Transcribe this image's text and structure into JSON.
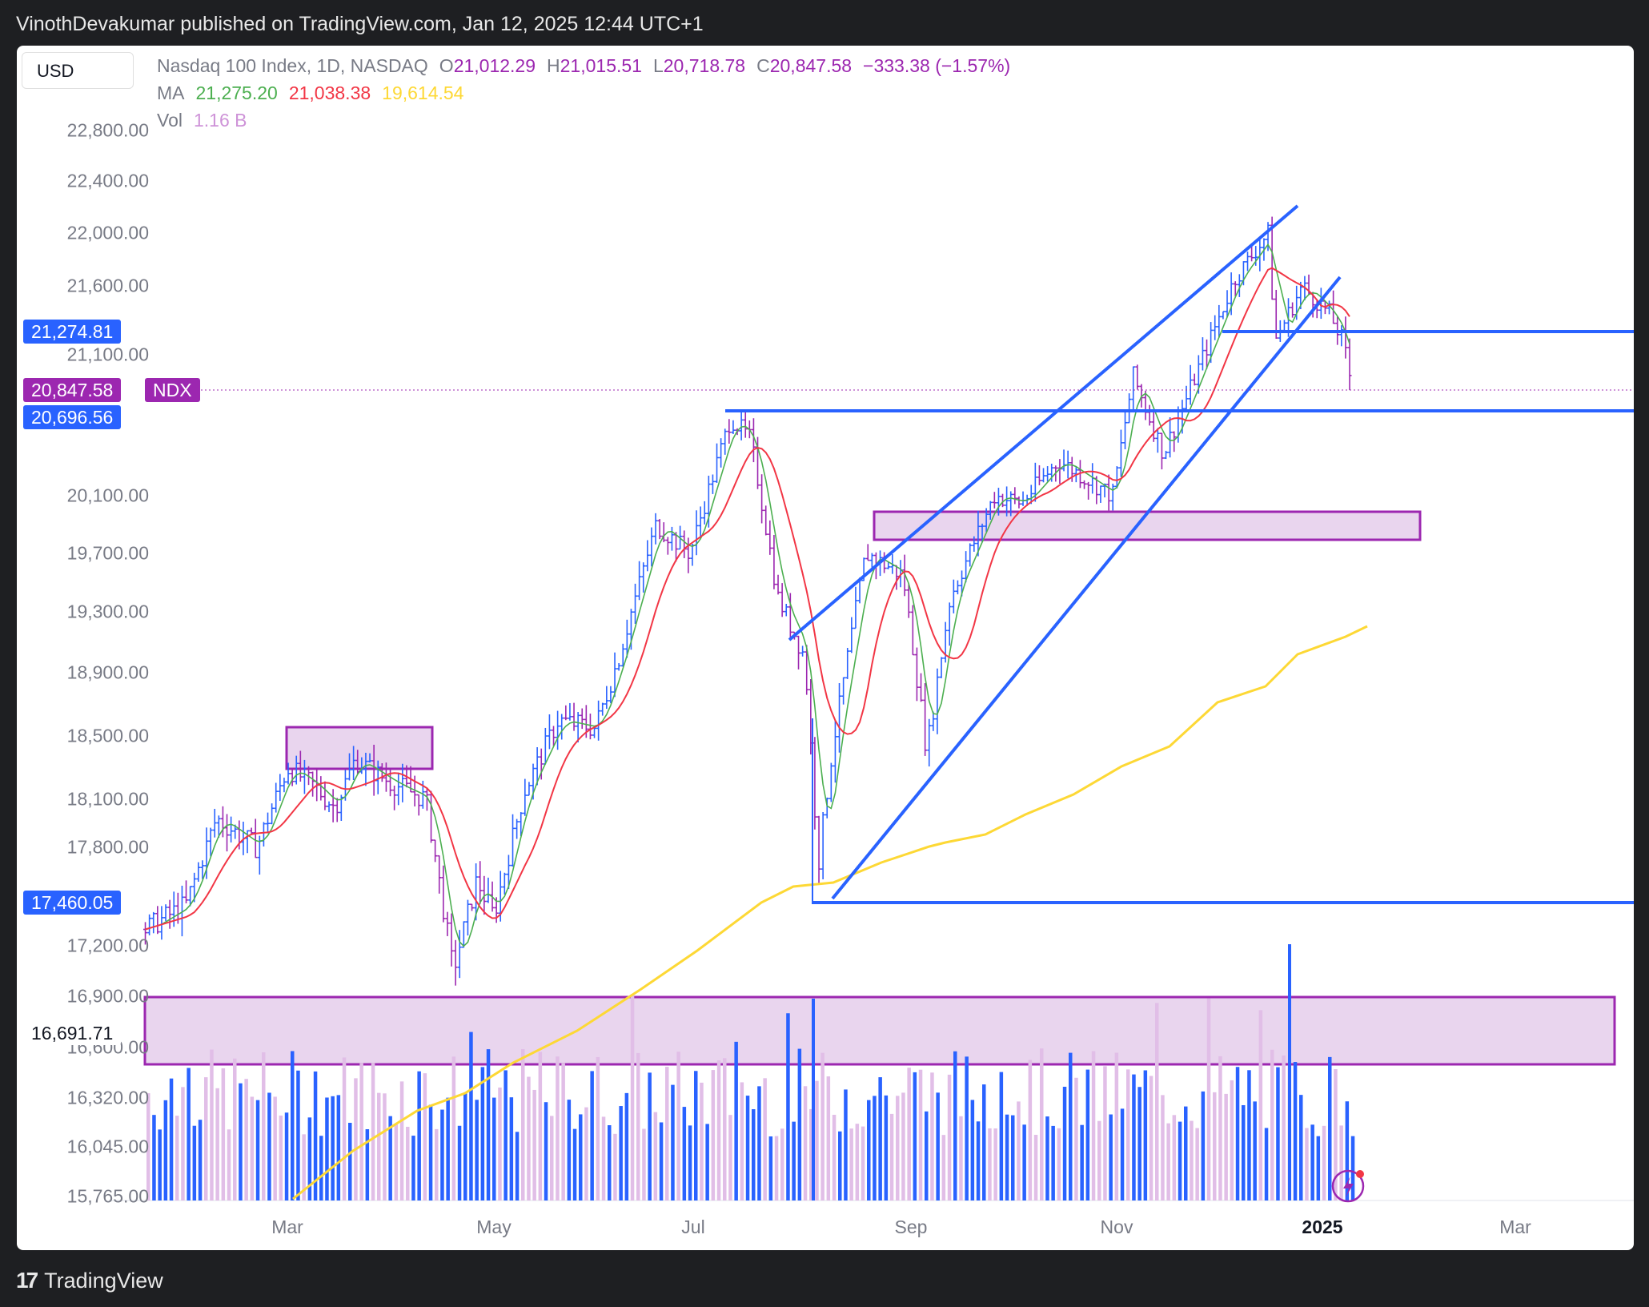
{
  "header": {
    "published": "VinothDevakumar published on TradingView.com, Jan 12, 2025 12:44 UTC+1"
  },
  "footer": {
    "brand": "TradingView",
    "logo_glyph": "17"
  },
  "toolbar": {
    "currency": "USD"
  },
  "legend": {
    "title": "Nasdaq 100 Index, 1D, NASDAQ",
    "o_label": "O",
    "o_value": "21,012.29",
    "h_label": "H",
    "h_value": "21,015.51",
    "l_label": "L",
    "l_value": "20,718.78",
    "c_label": "C",
    "c_value": "20,847.58",
    "change": "−333.38 (−1.57%)",
    "ma_label": "MA",
    "ma1": "21,275.20",
    "ma2": "21,038.38",
    "ma3": "19,614.54",
    "vol_label": "Vol",
    "vol_value": "1.16 B"
  },
  "price_tags": {
    "level_upper": "21,274.81",
    "last": "20,847.58",
    "symbol": "NDX",
    "level_mid": "20,696.56",
    "level_low": "17,460.05",
    "level_zone": "16,691.71"
  },
  "colors": {
    "blue": "#2962ff",
    "purple": "#9c27b0",
    "zone_fill": "#e9d5ee",
    "ma_green": "#4caf50",
    "ma_red": "#f23645",
    "ma_yellow": "#fdd835",
    "up": "#2962ff",
    "down": "#9c27b0"
  },
  "chart_data": {
    "type": "candlestick",
    "y_axis_ticks": [
      22800,
      22400,
      22000,
      21600,
      21100,
      20100,
      19700,
      19300,
      18900,
      18500,
      18100,
      17800,
      17200,
      16900,
      16600,
      16320,
      16045,
      15765
    ],
    "y_axis_tick_labels": [
      "22,800.00",
      "22,400.00",
      "22,000.00",
      "21,600.00",
      "21,100.00",
      "20,100.00",
      "19,700.00",
      "19,300.00",
      "18,900.00",
      "18,500.00",
      "18,100.00",
      "17,800.00",
      "17,200.00",
      "16,900.00",
      "16,600.00",
      "16,320.00",
      "16,045.00",
      "15,765.00"
    ],
    "x_axis_labels": [
      "Mar",
      "May",
      "Jul",
      "Sep",
      "Nov",
      "2025",
      "Mar"
    ],
    "price_path": [
      [
        "2024-01-19",
        17300
      ],
      [
        "2024-01-31",
        17450
      ],
      [
        "2024-02-09",
        17980
      ],
      [
        "2024-02-21",
        17800
      ],
      [
        "2024-03-01",
        18300
      ],
      [
        "2024-03-08",
        18200
      ],
      [
        "2024-03-15",
        18050
      ],
      [
        "2024-03-21",
        18350
      ],
      [
        "2024-04-01",
        18200
      ],
      [
        "2024-04-11",
        18100
      ],
      [
        "2024-04-19",
        17050
      ],
      [
        "2024-04-26",
        17600
      ],
      [
        "2024-05-01",
        17380
      ],
      [
        "2024-05-10",
        18150
      ],
      [
        "2024-05-20",
        18600
      ],
      [
        "2024-05-31",
        18550
      ],
      [
        "2024-06-07",
        19000
      ],
      [
        "2024-06-18",
        19900
      ],
      [
        "2024-06-28",
        19700
      ],
      [
        "2024-07-10",
        20650
      ],
      [
        "2024-07-16",
        20500
      ],
      [
        "2024-07-24",
        19400
      ],
      [
        "2024-08-01",
        19000
      ],
      [
        "2024-08-05",
        17700
      ],
      [
        "2024-08-09",
        18400
      ],
      [
        "2024-08-19",
        19700
      ],
      [
        "2024-08-30",
        19550
      ],
      [
        "2024-09-06",
        18400
      ],
      [
        "2024-09-13",
        19400
      ],
      [
        "2024-09-26",
        20100
      ],
      [
        "2024-10-04",
        20050
      ],
      [
        "2024-10-15",
        20350
      ],
      [
        "2024-10-31",
        20100
      ],
      [
        "2024-11-06",
        20950
      ],
      [
        "2024-11-15",
        20400
      ],
      [
        "2024-11-22",
        20800
      ],
      [
        "2024-12-06",
        21650
      ],
      [
        "2024-12-16",
        22000
      ],
      [
        "2024-12-18",
        21200
      ],
      [
        "2024-12-26",
        21600
      ],
      [
        "2025-01-03",
        21400
      ],
      [
        "2025-01-07",
        21200
      ],
      [
        "2025-01-10",
        20848
      ]
    ],
    "ma_values_last": {
      "ma1": 21275.2,
      "ma2": 21038.38,
      "ma3": 19614.54
    },
    "levels": [
      21274.81,
      20696.56,
      17460.05
    ],
    "zones": [
      [
        18280,
        18560
      ],
      [
        19750,
        19980
      ],
      [
        16500,
        16900
      ]
    ],
    "volume_last": "1.16 B"
  }
}
